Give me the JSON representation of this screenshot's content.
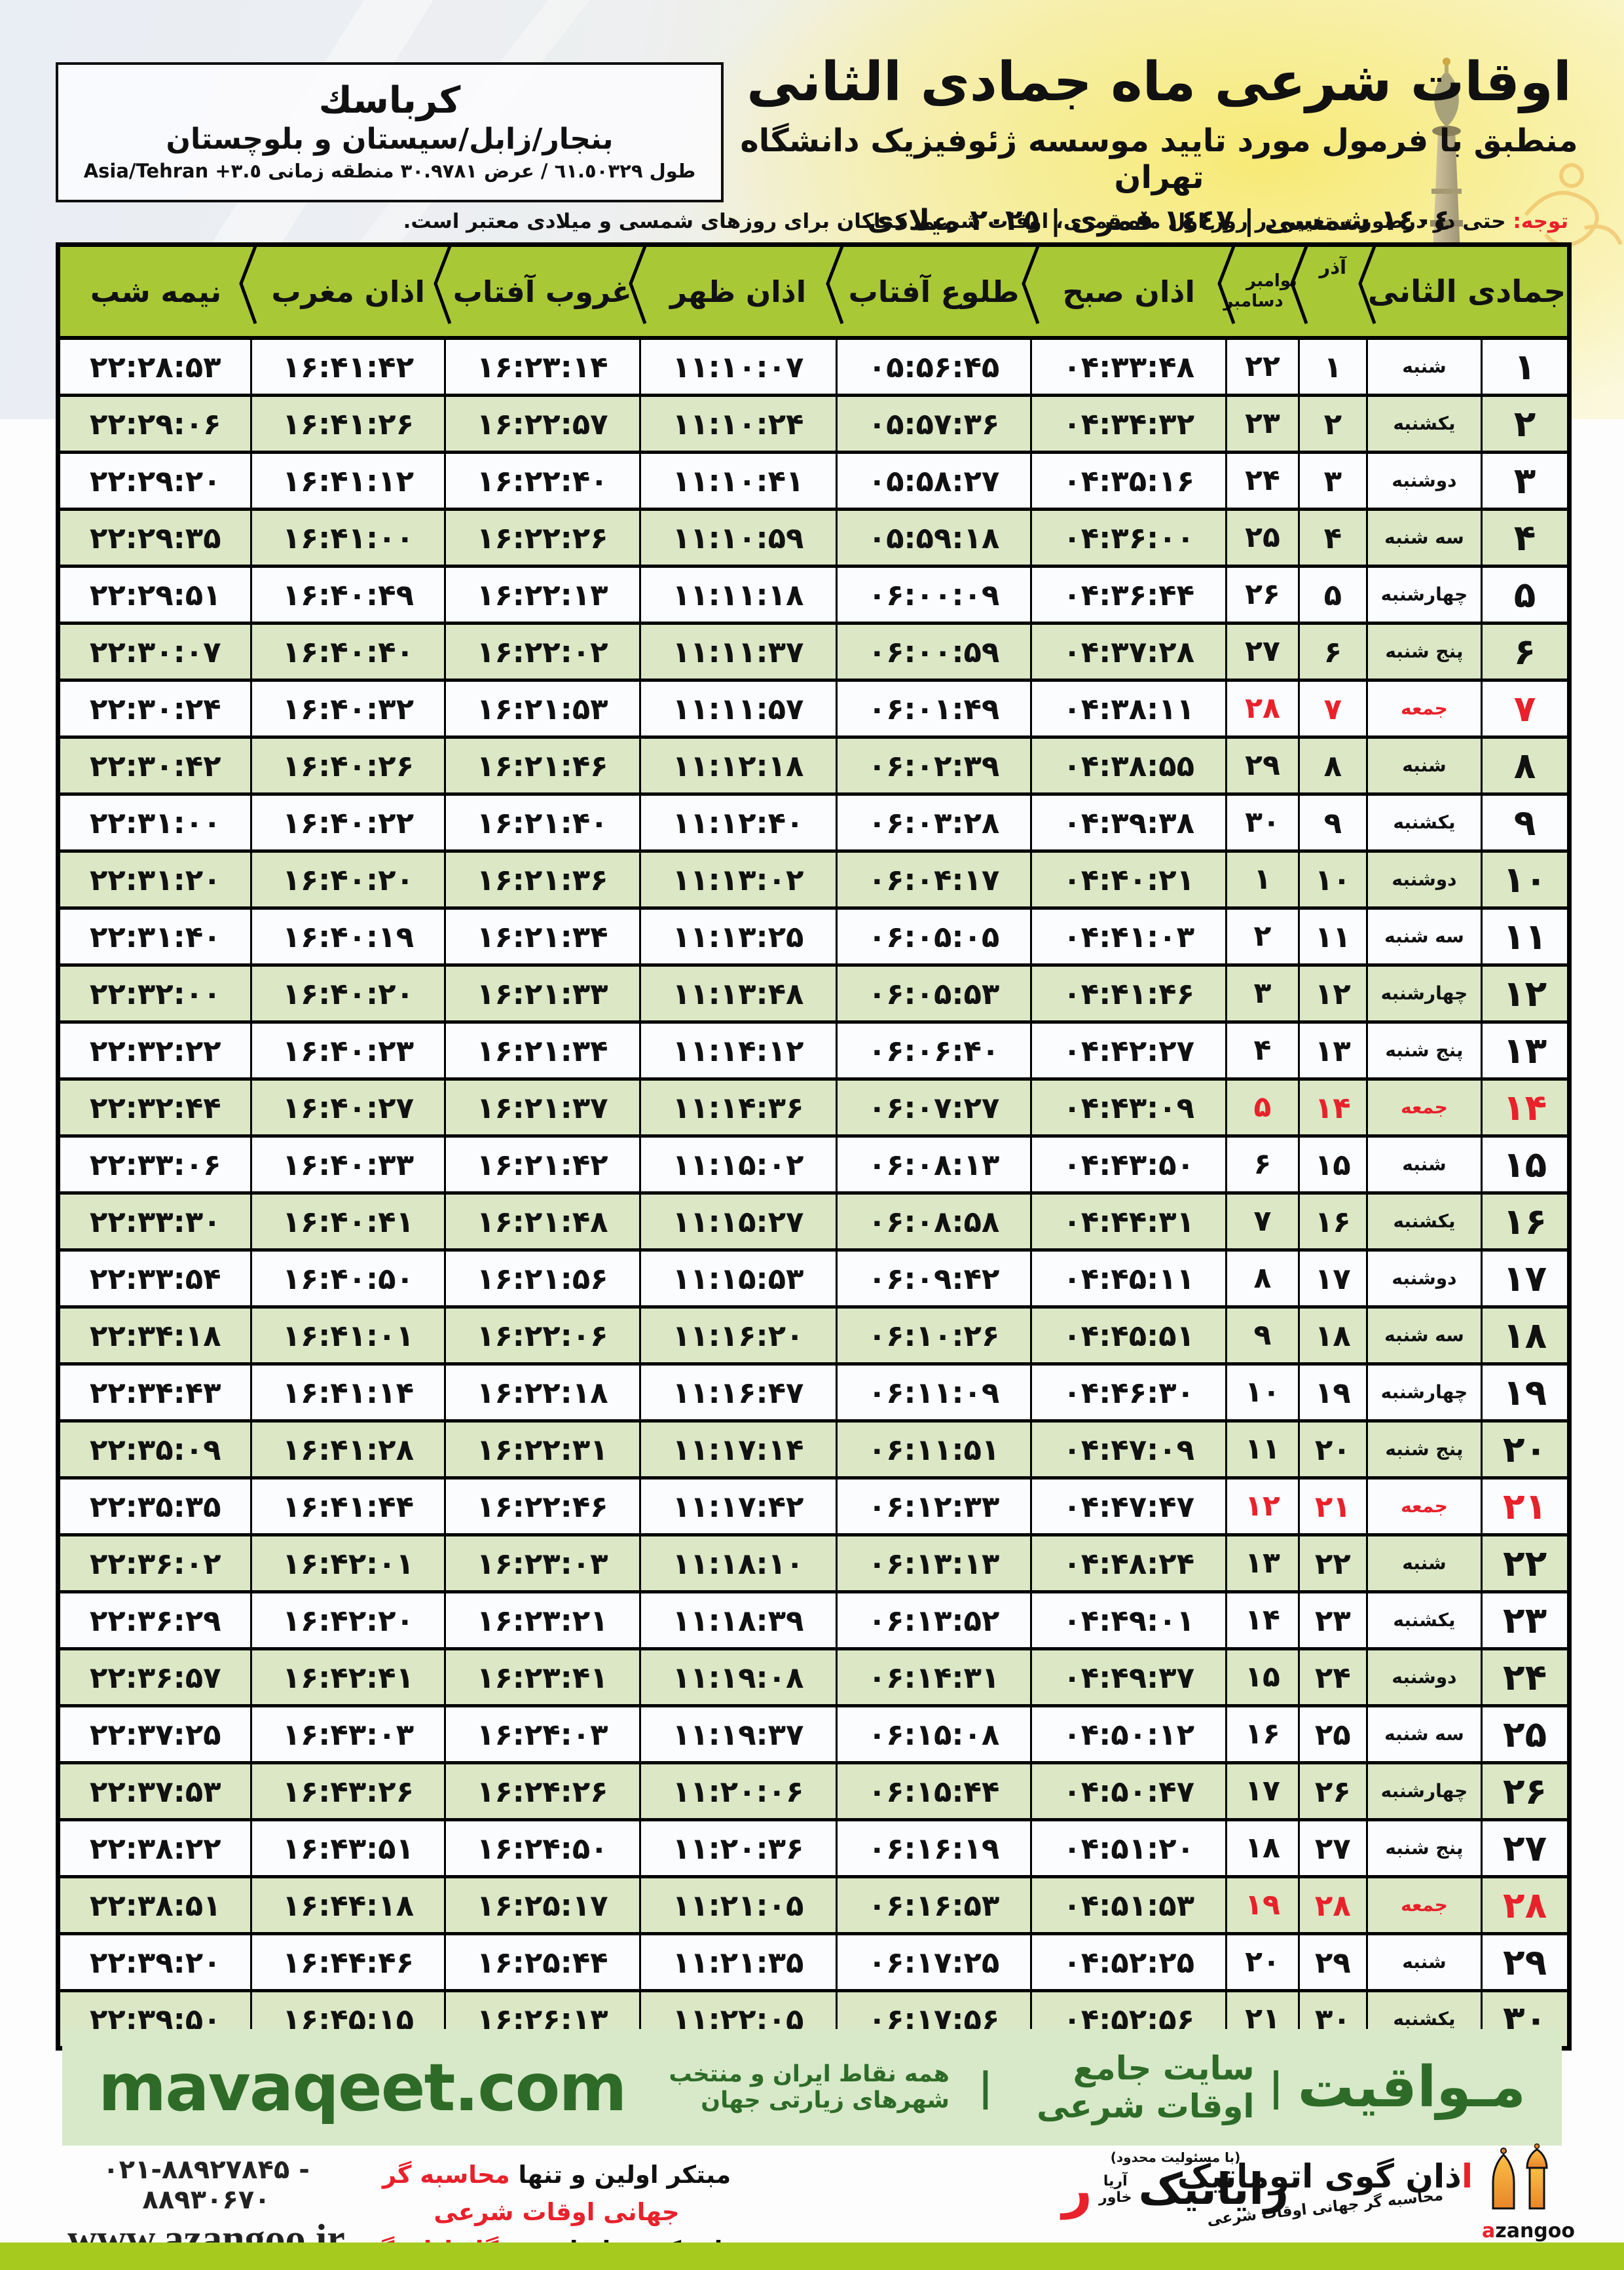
{
  "header": {
    "title": "اوقات شرعی ماه جمادی الثانی",
    "subtitle": "منطبق با فرمول مورد تایید موسسه ژئوفیزیک دانشگاه تهران",
    "dates": "١٤٠٤ شمسی | ١٤٤٧ قمری | ٢٠٢٥ میلادی"
  },
  "location": {
    "city": "كرباسك",
    "region": "بنجار/زابل/سیستان و بلوچستان",
    "coords_main": "طول ٦١.٥٠٣٢٩ / عرض ٣٠.٩٧٨١ منطقه زمانی",
    "coords_tz": "Asia/Tehran +٣.٥"
  },
  "note": {
    "label": "توجه:",
    "text": " حتی در درصورت تغییر در روز اول ماه قمری، اوقات شرعی کماکان برای روزهای شمسی و میلادی معتبر است."
  },
  "table": {
    "headers": {
      "month": "جمادی الثانی",
      "azar": "آذر",
      "miladi_top": "نوامبر",
      "miladi_bottom": "دسامبر",
      "fajr": "اذان صبح",
      "sunrise": "طلوع آفتاب",
      "dhuhr": "اذان ظهر",
      "sunset": "غروب آفتاب",
      "maghrib": "اذان مغرب",
      "midnight": "نیمه شب"
    },
    "rows": [
      [
        "۱",
        "شنبه",
        "۱",
        "۲۲",
        "۰۴:۳۳:۴۸",
        "۰۵:۵۶:۴۵",
        "۱۱:۱۰:۰۷",
        "۱۶:۲۳:۱۴",
        "۱۶:۴۱:۴۲",
        "۲۲:۲۸:۵۳",
        false
      ],
      [
        "۲",
        "یکشنبه",
        "۲",
        "۲۳",
        "۰۴:۳۴:۳۲",
        "۰۵:۵۷:۳۶",
        "۱۱:۱۰:۲۴",
        "۱۶:۲۲:۵۷",
        "۱۶:۴۱:۲۶",
        "۲۲:۲۹:۰۶",
        false
      ],
      [
        "۳",
        "دوشنبه",
        "۳",
        "۲۴",
        "۰۴:۳۵:۱۶",
        "۰۵:۵۸:۲۷",
        "۱۱:۱۰:۴۱",
        "۱۶:۲۲:۴۰",
        "۱۶:۴۱:۱۲",
        "۲۲:۲۹:۲۰",
        false
      ],
      [
        "۴",
        "سه شنبه",
        "۴",
        "۲۵",
        "۰۴:۳۶:۰۰",
        "۰۵:۵۹:۱۸",
        "۱۱:۱۰:۵۹",
        "۱۶:۲۲:۲۶",
        "۱۶:۴۱:۰۰",
        "۲۲:۲۹:۳۵",
        false
      ],
      [
        "۵",
        "چهارشنبه",
        "۵",
        "۲۶",
        "۰۴:۳۶:۴۴",
        "۰۶:۰۰:۰۹",
        "۱۱:۱۱:۱۸",
        "۱۶:۲۲:۱۳",
        "۱۶:۴۰:۴۹",
        "۲۲:۲۹:۵۱",
        false
      ],
      [
        "۶",
        "پنج شنبه",
        "۶",
        "۲۷",
        "۰۴:۳۷:۲۸",
        "۰۶:۰۰:۵۹",
        "۱۱:۱۱:۳۷",
        "۱۶:۲۲:۰۲",
        "۱۶:۴۰:۴۰",
        "۲۲:۳۰:۰۷",
        false
      ],
      [
        "۷",
        "جمعه",
        "۷",
        "۲۸",
        "۰۴:۳۸:۱۱",
        "۰۶:۰۱:۴۹",
        "۱۱:۱۱:۵۷",
        "۱۶:۲۱:۵۳",
        "۱۶:۴۰:۳۲",
        "۲۲:۳۰:۲۴",
        true
      ],
      [
        "۸",
        "شنبه",
        "۸",
        "۲۹",
        "۰۴:۳۸:۵۵",
        "۰۶:۰۲:۳۹",
        "۱۱:۱۲:۱۸",
        "۱۶:۲۱:۴۶",
        "۱۶:۴۰:۲۶",
        "۲۲:۳۰:۴۲",
        false
      ],
      [
        "۹",
        "یکشنبه",
        "۹",
        "۳۰",
        "۰۴:۳۹:۳۸",
        "۰۶:۰۳:۲۸",
        "۱۱:۱۲:۴۰",
        "۱۶:۲۱:۴۰",
        "۱۶:۴۰:۲۲",
        "۲۲:۳۱:۰۰",
        false
      ],
      [
        "۱۰",
        "دوشنبه",
        "۱۰",
        "۱",
        "۰۴:۴۰:۲۱",
        "۰۶:۰۴:۱۷",
        "۱۱:۱۳:۰۲",
        "۱۶:۲۱:۳۶",
        "۱۶:۴۰:۲۰",
        "۲۲:۳۱:۲۰",
        false
      ],
      [
        "۱۱",
        "سه شنبه",
        "۱۱",
        "۲",
        "۰۴:۴۱:۰۳",
        "۰۶:۰۵:۰۵",
        "۱۱:۱۳:۲۵",
        "۱۶:۲۱:۳۴",
        "۱۶:۴۰:۱۹",
        "۲۲:۳۱:۴۰",
        false
      ],
      [
        "۱۲",
        "چهارشنبه",
        "۱۲",
        "۳",
        "۰۴:۴۱:۴۶",
        "۰۶:۰۵:۵۳",
        "۱۱:۱۳:۴۸",
        "۱۶:۲۱:۳۳",
        "۱۶:۴۰:۲۰",
        "۲۲:۳۲:۰۰",
        false
      ],
      [
        "۱۳",
        "پنج شنبه",
        "۱۳",
        "۴",
        "۰۴:۴۲:۲۷",
        "۰۶:۰۶:۴۰",
        "۱۱:۱۴:۱۲",
        "۱۶:۲۱:۳۴",
        "۱۶:۴۰:۲۳",
        "۲۲:۳۲:۲۲",
        false
      ],
      [
        "۱۴",
        "جمعه",
        "۱۴",
        "۵",
        "۰۴:۴۳:۰۹",
        "۰۶:۰۷:۲۷",
        "۱۱:۱۴:۳۶",
        "۱۶:۲۱:۳۷",
        "۱۶:۴۰:۲۷",
        "۲۲:۳۲:۴۴",
        true
      ],
      [
        "۱۵",
        "شنبه",
        "۱۵",
        "۶",
        "۰۴:۴۳:۵۰",
        "۰۶:۰۸:۱۳",
        "۱۱:۱۵:۰۲",
        "۱۶:۲۱:۴۲",
        "۱۶:۴۰:۳۳",
        "۲۲:۳۳:۰۶",
        false
      ],
      [
        "۱۶",
        "یکشنبه",
        "۱۶",
        "۷",
        "۰۴:۴۴:۳۱",
        "۰۶:۰۸:۵۸",
        "۱۱:۱۵:۲۷",
        "۱۶:۲۱:۴۸",
        "۱۶:۴۰:۴۱",
        "۲۲:۳۳:۳۰",
        false
      ],
      [
        "۱۷",
        "دوشنبه",
        "۱۷",
        "۸",
        "۰۴:۴۵:۱۱",
        "۰۶:۰۹:۴۲",
        "۱۱:۱۵:۵۳",
        "۱۶:۲۱:۵۶",
        "۱۶:۴۰:۵۰",
        "۲۲:۳۳:۵۴",
        false
      ],
      [
        "۱۸",
        "سه شنبه",
        "۱۸",
        "۹",
        "۰۴:۴۵:۵۱",
        "۰۶:۱۰:۲۶",
        "۱۱:۱۶:۲۰",
        "۱۶:۲۲:۰۶",
        "۱۶:۴۱:۰۱",
        "۲۲:۳۴:۱۸",
        false
      ],
      [
        "۱۹",
        "چهارشنبه",
        "۱۹",
        "۱۰",
        "۰۴:۴۶:۳۰",
        "۰۶:۱۱:۰۹",
        "۱۱:۱۶:۴۷",
        "۱۶:۲۲:۱۸",
        "۱۶:۴۱:۱۴",
        "۲۲:۳۴:۴۳",
        false
      ],
      [
        "۲۰",
        "پنج شنبه",
        "۲۰",
        "۱۱",
        "۰۴:۴۷:۰۹",
        "۰۶:۱۱:۵۱",
        "۱۱:۱۷:۱۴",
        "۱۶:۲۲:۳۱",
        "۱۶:۴۱:۲۸",
        "۲۲:۳۵:۰۹",
        false
      ],
      [
        "۲۱",
        "جمعه",
        "۲۱",
        "۱۲",
        "۰۴:۴۷:۴۷",
        "۰۶:۱۲:۳۳",
        "۱۱:۱۷:۴۲",
        "۱۶:۲۲:۴۶",
        "۱۶:۴۱:۴۴",
        "۲۲:۳۵:۳۵",
        true
      ],
      [
        "۲۲",
        "شنبه",
        "۲۲",
        "۱۳",
        "۰۴:۴۸:۲۴",
        "۰۶:۱۳:۱۳",
        "۱۱:۱۸:۱۰",
        "۱۶:۲۳:۰۳",
        "۱۶:۴۲:۰۱",
        "۲۲:۳۶:۰۲",
        false
      ],
      [
        "۲۳",
        "یکشنبه",
        "۲۳",
        "۱۴",
        "۰۴:۴۹:۰۱",
        "۰۶:۱۳:۵۲",
        "۱۱:۱۸:۳۹",
        "۱۶:۲۳:۲۱",
        "۱۶:۴۲:۲۰",
        "۲۲:۳۶:۲۹",
        false
      ],
      [
        "۲۴",
        "دوشنبه",
        "۲۴",
        "۱۵",
        "۰۴:۴۹:۳۷",
        "۰۶:۱۴:۳۱",
        "۱۱:۱۹:۰۸",
        "۱۶:۲۳:۴۱",
        "۱۶:۴۲:۴۱",
        "۲۲:۳۶:۵۷",
        false
      ],
      [
        "۲۵",
        "سه شنبه",
        "۲۵",
        "۱۶",
        "۰۴:۵۰:۱۲",
        "۰۶:۱۵:۰۸",
        "۱۱:۱۹:۳۷",
        "۱۶:۲۴:۰۳",
        "۱۶:۴۳:۰۳",
        "۲۲:۳۷:۲۵",
        false
      ],
      [
        "۲۶",
        "چهارشنبه",
        "۲۶",
        "۱۷",
        "۰۴:۵۰:۴۷",
        "۰۶:۱۵:۴۴",
        "۱۱:۲۰:۰۶",
        "۱۶:۲۴:۲۶",
        "۱۶:۴۳:۲۶",
        "۲۲:۳۷:۵۳",
        false
      ],
      [
        "۲۷",
        "پنج شنبه",
        "۲۷",
        "۱۸",
        "۰۴:۵۱:۲۰",
        "۰۶:۱۶:۱۹",
        "۱۱:۲۰:۳۶",
        "۱۶:۲۴:۵۰",
        "۱۶:۴۳:۵۱",
        "۲۲:۳۸:۲۲",
        false
      ],
      [
        "۲۸",
        "جمعه",
        "۲۸",
        "۱۹",
        "۰۴:۵۱:۵۳",
        "۰۶:۱۶:۵۳",
        "۱۱:۲۱:۰۵",
        "۱۶:۲۵:۱۷",
        "۱۶:۴۴:۱۸",
        "۲۲:۳۸:۵۱",
        true
      ],
      [
        "۲۹",
        "شنبه",
        "۲۹",
        "۲۰",
        "۰۴:۵۲:۲۵",
        "۰۶:۱۷:۲۵",
        "۱۱:۲۱:۳۵",
        "۱۶:۲۵:۴۴",
        "۱۶:۴۴:۴۶",
        "۲۲:۳۹:۲۰",
        false
      ],
      [
        "۳۰",
        "یکشنبه",
        "۳۰",
        "۲۱",
        "۰۴:۵۲:۵۶",
        "۰۶:۱۷:۵۶",
        "۱۱:۲۲:۰۵",
        "۱۶:۲۶:۱۳",
        "۱۶:۴۵:۱۵",
        "۲۲:۳۹:۵۰",
        false
      ]
    ]
  },
  "mavaqeet": {
    "brand": "مـواقیت",
    "divider": "|",
    "site_label": "سایت جامع اوقات شرعی",
    "coverage": "همه نقاط ایران و منتخب شهرهای زیارتی جهان",
    "url": "mavaqeet.com"
  },
  "footer": {
    "phone": "۰۲۱-۸۸۹۲۷۸۴۵ - ۸۸۹۳۰۶۷۰",
    "url": "www.azangoo.ir",
    "line1_black": "مبتکر اولین و تنها ",
    "line1_red": "محاسبه گر جهانی اوقات شرعی",
    "line2_black": "و تولید کننده انواع ",
    "line2_red": "دستگاه اذان گوی تمام خودکار ماهواره ای",
    "rayanik": {
      "note": "(با مسئولیت محدود)",
      "name": "رایانیک",
      "sub_top": "آریا",
      "sub_bottom": "خاور",
      "mark": "ر"
    },
    "azangoo": {
      "name_first": "ا",
      "name_rest": "ذان گوی اتوماتیک",
      "tagline": "محاسبه گر جهانی اوقات شرعی",
      "brand_red": "a",
      "brand_black": "zangoo"
    }
  },
  "colors": {
    "header_green": "#a9c836",
    "row_green": "#dbe7c5",
    "friday_red": "#e8212b",
    "band_green": "#d7e9c8",
    "dark_green": "#2e6b28",
    "bottom_bar": "#a6ca1d"
  }
}
